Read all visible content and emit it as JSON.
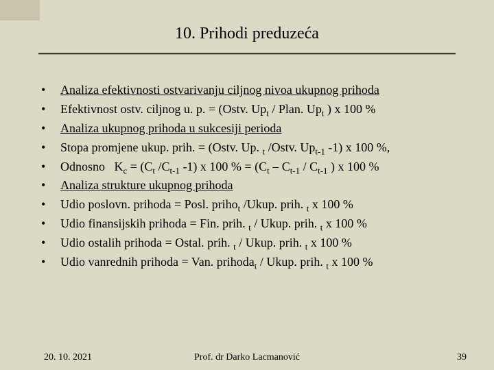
{
  "colors": {
    "slide_bg": "#dcd9c4",
    "dogear_bg": "#c9c4ab",
    "text": "#000000",
    "rule_dark": "#3a3a2e",
    "rule_light": "#aaa58c"
  },
  "title": "10. Prihodi preduzeća",
  "bullets": [
    {
      "underline": true,
      "html": "Analiza efektivnosti ostvarivanju ciljnog nivoa ukupnog prihoda"
    },
    {
      "underline": false,
      "html": "Efektivnost ostv. ciljnog u. p. = (Ostv. Up<span class=\"sub\">t</span> / Plan. Up<span class=\"sub\">t</span> ) x 100 %"
    },
    {
      "underline": true,
      "html": "Analiza ukupnog prihoda u sukcesiji perioda"
    },
    {
      "underline": false,
      "html": "Stopa promjene ukup. prih. = (Ostv. Up. <span class=\"sub\">t</span> /Ostv. Up<span class=\"sub\">t-1</span> -1) x 100 %,"
    },
    {
      "underline": false,
      "html": "Odnosno&nbsp;&nbsp;&nbsp;K<span class=\"sub\">c</span> = (C<span class=\"sub\">t</span> /C<span class=\"sub\">t-1</span> -1) x 100 % = (C<span class=\"sub\">t</span> – C<span class=\"sub\">t-1</span> / C<span class=\"sub\">t-1</span> ) x 100 %"
    },
    {
      "underline": true,
      "html": "Analiza strukture ukupnog prihoda"
    },
    {
      "underline": false,
      "html": "Udio poslovn. prihoda = Posl. priho<span class=\"sub\">t</span> /Ukup. prih. <span class=\"sub\">t</span> x 100 %"
    },
    {
      "underline": false,
      "html": "Udio finansijskih prihoda = Fin. prih. <span class=\"sub\">t</span> / Ukup. prih. <span class=\"sub\">t</span> x 100 %"
    },
    {
      "underline": false,
      "html": "Udio ostalih prihoda = Ostal. prih. <span class=\"sub\">t</span> / Ukup. prih. <span class=\"sub\">t</span> x 100 %"
    },
    {
      "underline": false,
      "html": "Udio vanrednih prihoda = Van. prihoda<span class=\"sub\">t</span> / Ukup. prih. <span class=\"sub\">t</span> x 100 %"
    }
  ],
  "footer": {
    "date": "20. 10. 2021",
    "author": "Prof. dr Darko Lacmanović",
    "page": "39"
  }
}
